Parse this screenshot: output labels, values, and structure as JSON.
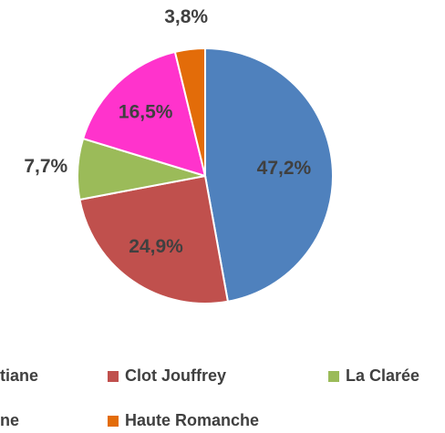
{
  "chart_data": {
    "type": "pie",
    "categories": [
      "tiane",
      "Clot Jouffrey",
      "La Clarée",
      "ne",
      "Haute Romanche"
    ],
    "values": [
      47.2,
      24.9,
      7.7,
      16.5,
      3.8
    ],
    "value_labels": [
      "47,2%",
      "24,9%",
      "7,7%",
      "16,5%",
      "3,8%"
    ],
    "colors": [
      "#4f81bd",
      "#c0504d",
      "#9bbb59",
      "#ff33cc",
      "#e36c09"
    ],
    "legend": "bottom"
  }
}
